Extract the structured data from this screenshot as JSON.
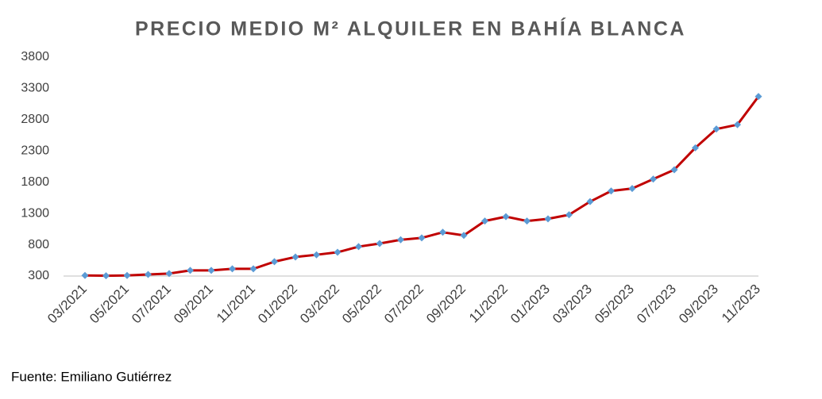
{
  "chart_data": {
    "type": "line",
    "title": "PRECIO MEDIO M² ALQUILER  EN BAHÍA BLANCA",
    "source": "Fuente: Emiliano Gutiérrez",
    "categories": [
      "03/2021",
      null,
      "05/2021",
      null,
      "07/2021",
      null,
      "09/2021",
      null,
      "11/2021",
      null,
      "01/2022",
      null,
      "03/2022",
      null,
      "05/2022",
      null,
      "07/2022",
      null,
      "09/2022",
      null,
      "11/2022",
      null,
      "01/2023",
      null,
      "03/2023",
      null,
      "05/2023",
      null,
      "07/2023",
      null,
      "09/2023",
      null,
      "11/2023"
    ],
    "series": [
      {
        "name": "Precio medio",
        "color": "#c00000",
        "marker_color": "#5b9bd5",
        "values": [
          310,
          305,
          310,
          325,
          340,
          390,
          390,
          415,
          415,
          530,
          605,
          640,
          680,
          770,
          820,
          880,
          910,
          1000,
          950,
          1180,
          1250,
          1180,
          1215,
          1280,
          1490,
          1660,
          1700,
          1850,
          2000,
          2350,
          2650,
          2720,
          3170
        ]
      }
    ],
    "ylim": [
      300,
      3800
    ],
    "yticks": [
      300,
      800,
      1300,
      1800,
      2300,
      2800,
      3300,
      3800
    ],
    "grid": false
  }
}
